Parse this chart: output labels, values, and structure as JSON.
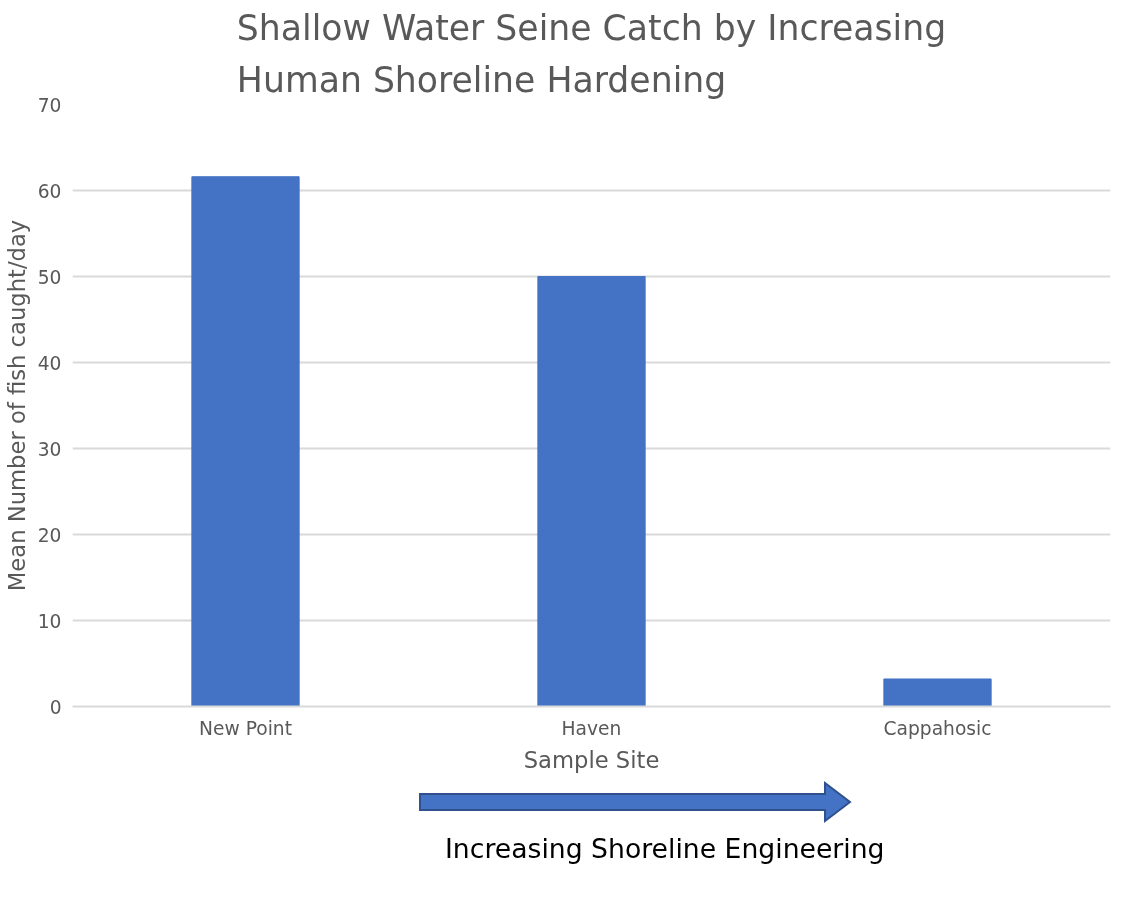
{
  "chart_data": {
    "type": "bar",
    "title": "Shallow Water Seine Catch by Increasing Human Shoreline Hardening",
    "xlabel": "Sample Site",
    "ylabel": "Mean Number of fish caught/day",
    "categories": [
      "New Point",
      "Haven",
      "Cappahosic"
    ],
    "values": [
      61.6,
      50,
      3.2
    ],
    "color": "#4472c4",
    "ylim": [
      0,
      70
    ],
    "yticks": [
      0,
      10,
      20,
      30,
      40,
      50,
      60,
      70
    ],
    "grid": "y",
    "annotations": [
      "Increasing Shoreline Engineering"
    ]
  }
}
